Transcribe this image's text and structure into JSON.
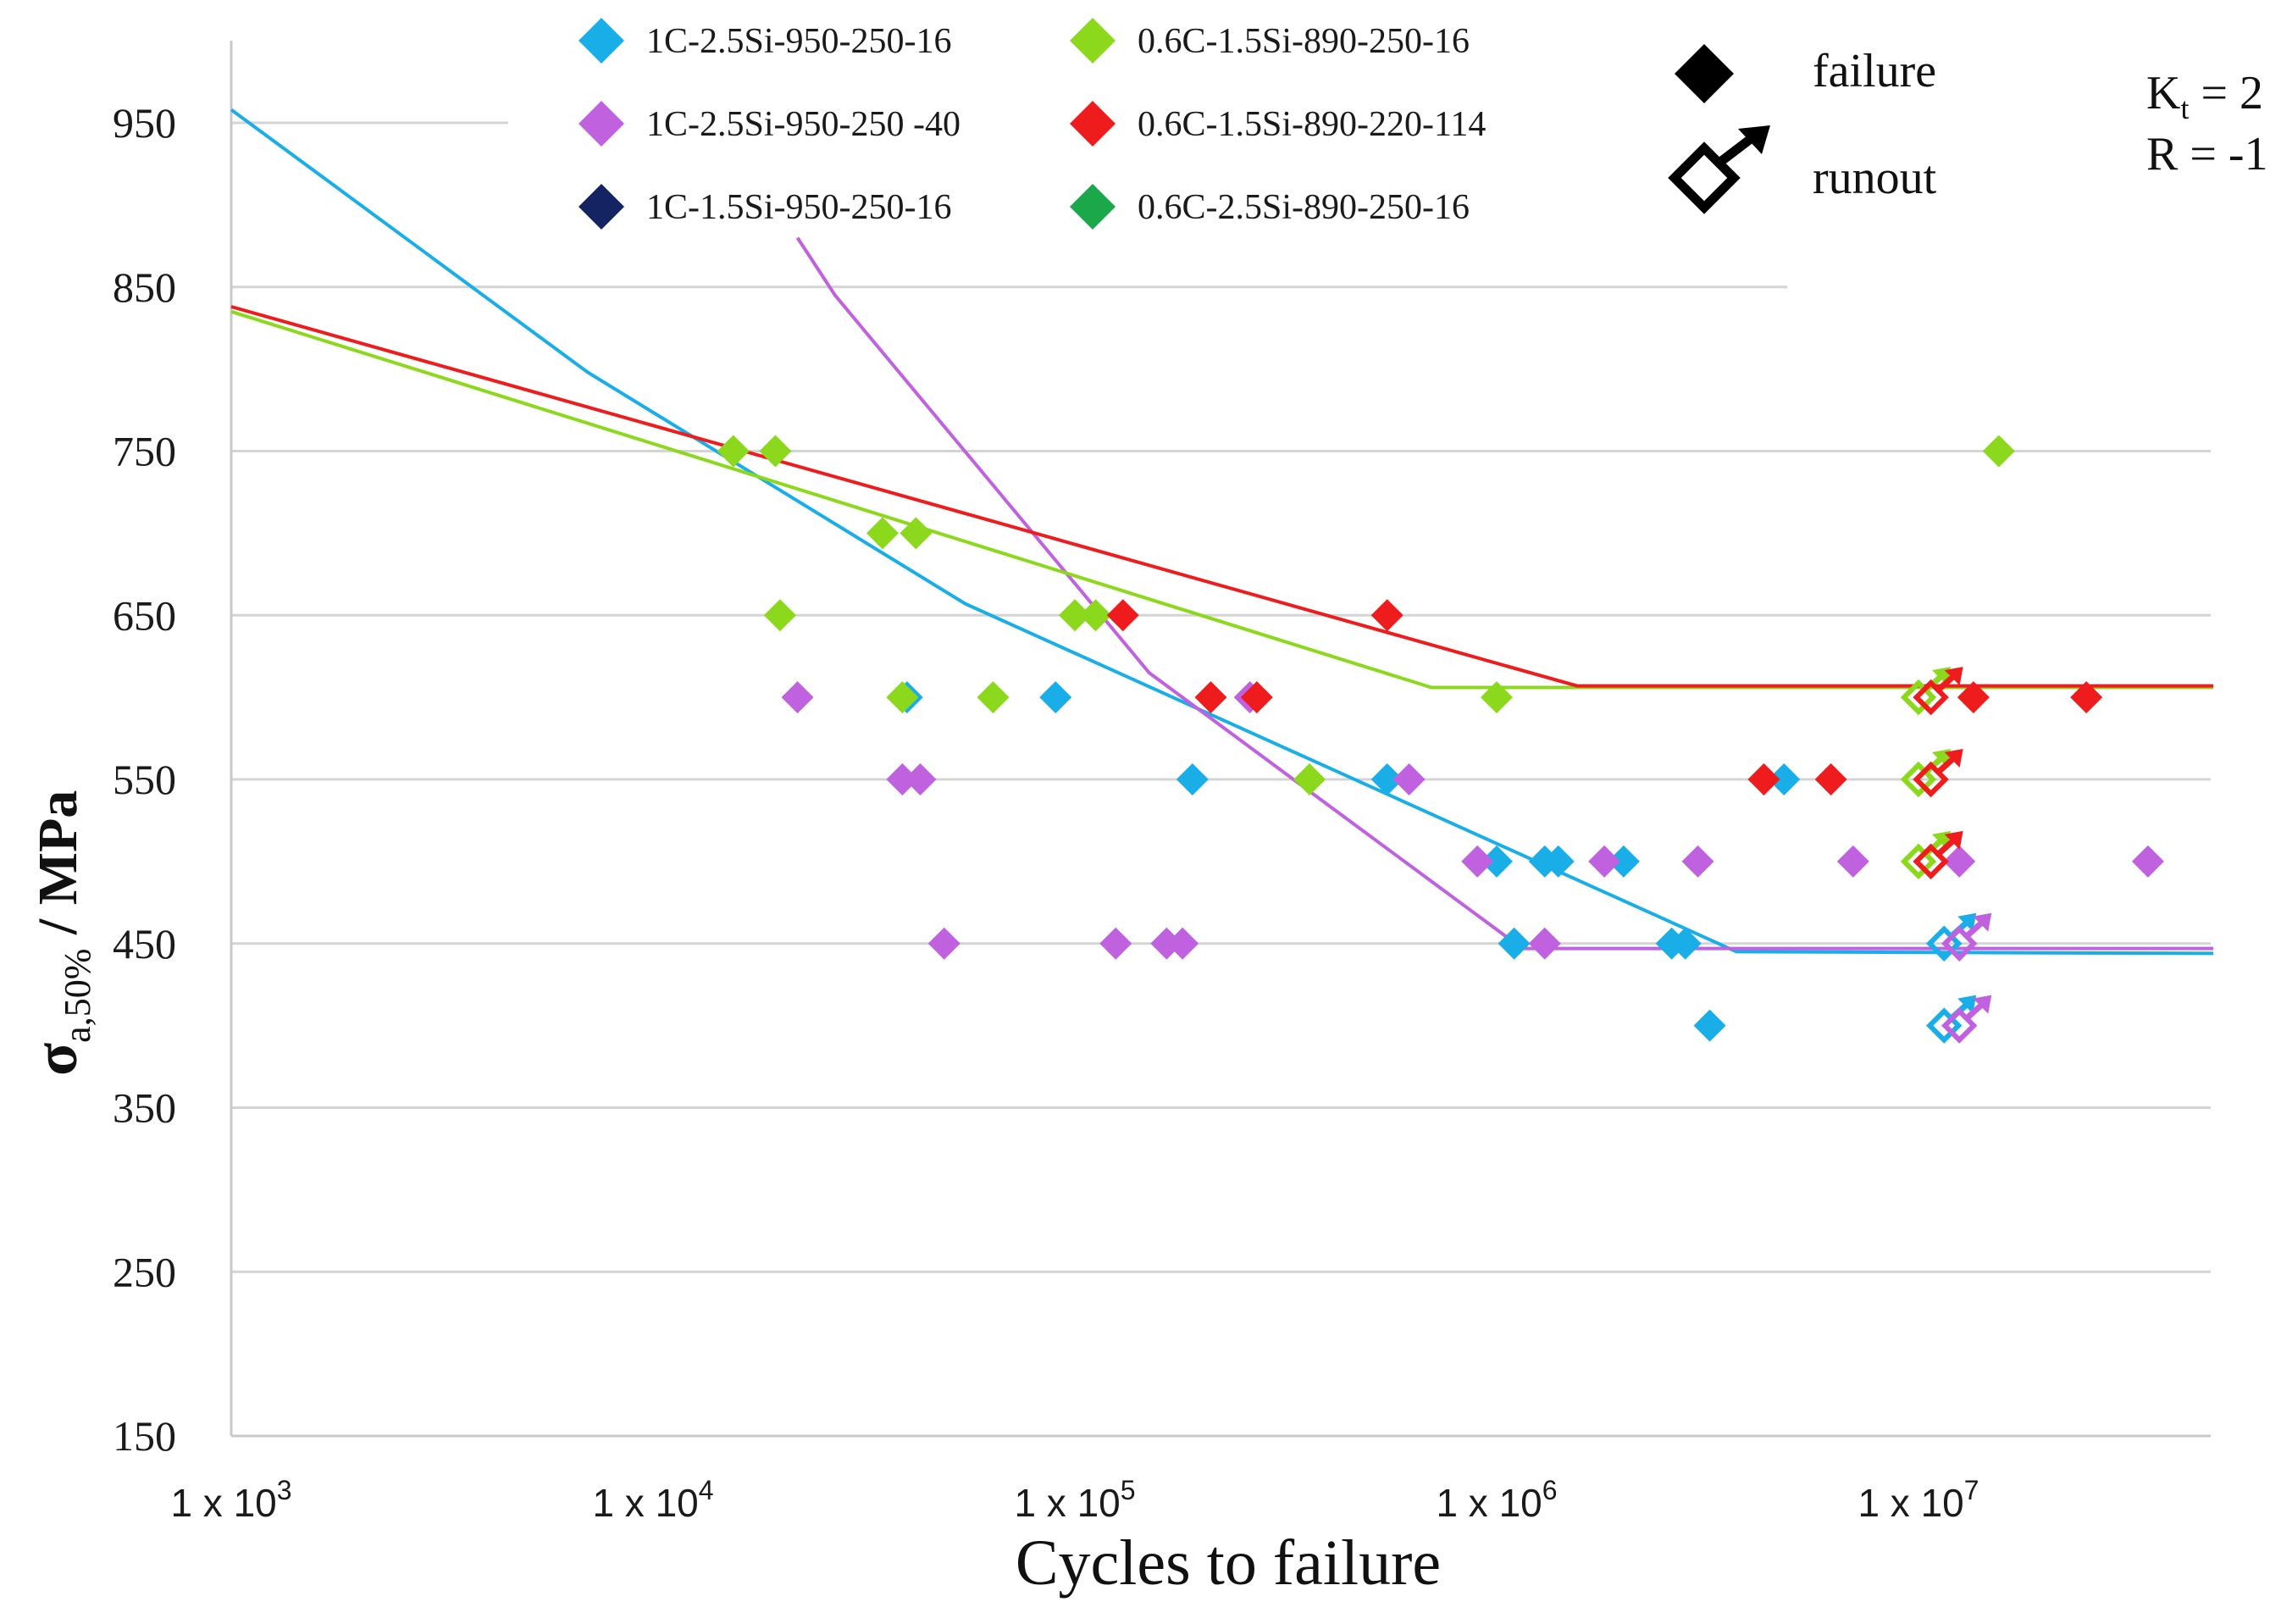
{
  "chart_data": {
    "type": "scatter",
    "title": "",
    "xlabel": "Cycles to failure",
    "ylabel": {
      "symbol": "σ",
      "subscript": "a,50%",
      "rest": " / MPa"
    },
    "xscale": "log",
    "xlim": [
      1000,
      50000000
    ],
    "ylim": [
      150,
      1000
    ],
    "grid": true,
    "yticks": [
      950,
      850,
      750,
      650,
      550,
      450,
      350,
      250,
      150
    ],
    "xticks": [
      {
        "value": 1000,
        "base": "1 x 10",
        "exp": "3"
      },
      {
        "value": 10000,
        "base": "1 x 10",
        "exp": "4"
      },
      {
        "value": 100000,
        "base": "1 x 10",
        "exp": "5"
      },
      {
        "value": 1000000,
        "base": "1 x 10",
        "exp": "6"
      },
      {
        "value": 10000000,
        "base": "1 x 10",
        "exp": "7"
      }
    ],
    "key": {
      "failure_label": "failure",
      "runout_label": "runout"
    },
    "conditions": {
      "kt_label": "K",
      "kt_sub": "t",
      "kt_value": " = 2",
      "r_label": "R = -1"
    },
    "series": [
      {
        "name": "1C-2.5Si-950-250-16",
        "color": "#1aaee8",
        "failures": [
          [
            40000,
            600
          ],
          [
            90000,
            600
          ],
          [
            190000,
            550
          ],
          [
            550000,
            550
          ],
          [
            1000000,
            500
          ],
          [
            1300000,
            500
          ],
          [
            1400000,
            500
          ],
          [
            2000000,
            500
          ],
          [
            1100000,
            450
          ],
          [
            2600000,
            450
          ],
          [
            2800000,
            450
          ],
          [
            3200000,
            400
          ],
          [
            4800000,
            550
          ]
        ],
        "runouts": [
          [
            11500000,
            450
          ],
          [
            11500000,
            400
          ]
        ],
        "trend": [
          [
            1000,
            958
          ],
          [
            7000,
            798
          ],
          [
            55000,
            657
          ],
          [
            3700000,
            445
          ],
          [
            50000000,
            444
          ]
        ]
      },
      {
        "name": "1C-2.5Si-950-250 -40",
        "color": "#c062e0",
        "failures": [
          [
            22000,
            600
          ],
          [
            39000,
            550
          ],
          [
            43000,
            550
          ],
          [
            49000,
            450
          ],
          [
            125000,
            450
          ],
          [
            165000,
            450
          ],
          [
            180000,
            450
          ],
          [
            260000,
            600
          ],
          [
            620000,
            550
          ],
          [
            900000,
            500
          ],
          [
            1300000,
            450
          ],
          [
            1800000,
            500
          ],
          [
            3000000,
            500
          ],
          [
            7000000,
            500
          ],
          [
            12500000,
            500
          ],
          [
            35000000,
            500
          ]
        ],
        "runouts": [
          [
            12500000,
            450
          ],
          [
            12500000,
            400
          ]
        ],
        "trend": [
          [
            22000,
            880
          ],
          [
            27000,
            845
          ],
          [
            150000,
            615
          ],
          [
            1150000,
            447
          ],
          [
            50000000,
            447
          ]
        ]
      },
      {
        "name": "1C-1.5Si-950-250-16",
        "color": "#142462",
        "failures": [],
        "runouts": [],
        "trend": []
      },
      {
        "name": "0.6C-1.5Si-890-250-16",
        "color": "#8cd81c",
        "failures": [
          [
            15500000,
            750
          ],
          [
            15500,
            750
          ],
          [
            19500,
            750
          ],
          [
            20000,
            650
          ],
          [
            35000,
            700
          ],
          [
            42000,
            700
          ],
          [
            39000,
            600
          ],
          [
            64000,
            600
          ],
          [
            100000,
            650
          ],
          [
            112000,
            650
          ],
          [
            360000,
            550
          ],
          [
            1000000,
            600
          ]
        ],
        "runouts": [
          [
            10000000,
            600
          ],
          [
            10000000,
            550
          ],
          [
            10000000,
            500
          ]
        ],
        "trend": [
          [
            1000,
            835
          ],
          [
            700000,
            606
          ],
          [
            50000000,
            606
          ]
        ]
      },
      {
        "name": "0.6C-1.5Si-890-220-114",
        "color": "#ee1c1c",
        "failures": [
          [
            130000,
            650
          ],
          [
            550000,
            650
          ],
          [
            210000,
            600
          ],
          [
            270000,
            600
          ],
          [
            13500000,
            600
          ],
          [
            25000000,
            600
          ],
          [
            4300000,
            550
          ],
          [
            6200000,
            550
          ]
        ],
        "runouts": [
          [
            10700000,
            600
          ],
          [
            10700000,
            550
          ],
          [
            10700000,
            500
          ]
        ],
        "trend": [
          [
            1000,
            838
          ],
          [
            1550000,
            607
          ],
          [
            50000000,
            607
          ]
        ]
      },
      {
        "name": "0.6C-2.5Si-890-250-16",
        "color": "#1aa84a",
        "failures": [],
        "runouts": [],
        "trend": []
      }
    ]
  }
}
